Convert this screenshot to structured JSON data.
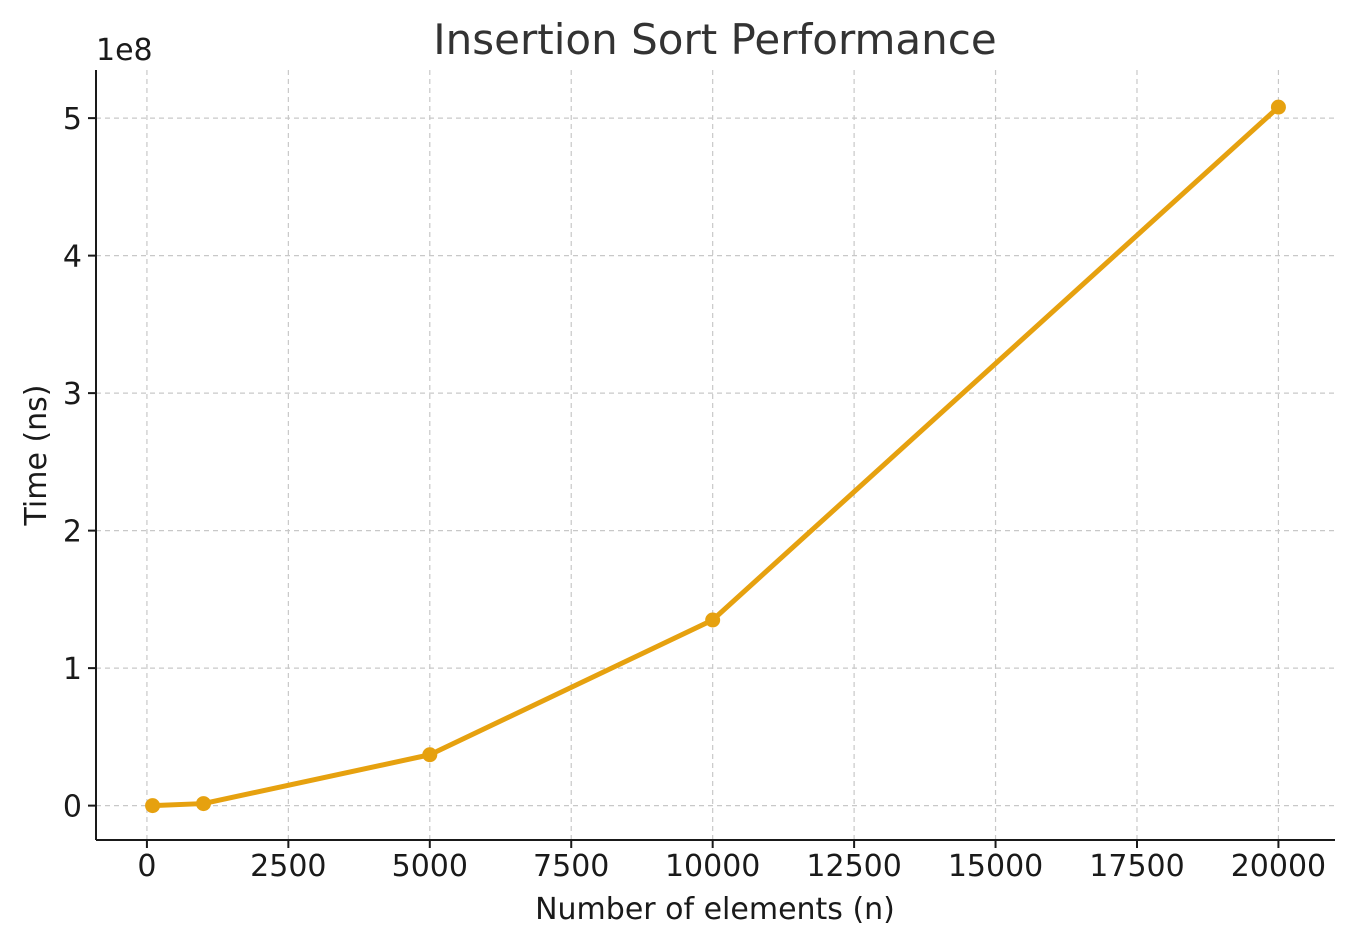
{
  "chart_data": {
    "type": "line",
    "title": "Insertion Sort Performance",
    "xlabel": "Number of elements (n)",
    "ylabel": "Time (ns)",
    "y_offset_label": "1e8",
    "xlim": [
      -900,
      21000
    ],
    "ylim": [
      -0.25,
      5.35
    ],
    "y_scale_factor": 100000000,
    "x_ticks": [
      0,
      2500,
      5000,
      7500,
      10000,
      12500,
      15000,
      17500,
      20000
    ],
    "x_tick_labels": [
      "0",
      "2500",
      "5000",
      "7500",
      "10000",
      "12500",
      "15000",
      "17500",
      "20000"
    ],
    "y_ticks": [
      0,
      1,
      2,
      3,
      4,
      5
    ],
    "y_tick_labels": [
      "0",
      "1",
      "2",
      "3",
      "4",
      "5"
    ],
    "grid": true,
    "series": [
      {
        "color": "#e6a10f",
        "x": [
          100,
          1000,
          5000,
          10000,
          20000
        ],
        "y": [
          0.0,
          0.015,
          0.37,
          1.35,
          5.08
        ]
      }
    ]
  }
}
